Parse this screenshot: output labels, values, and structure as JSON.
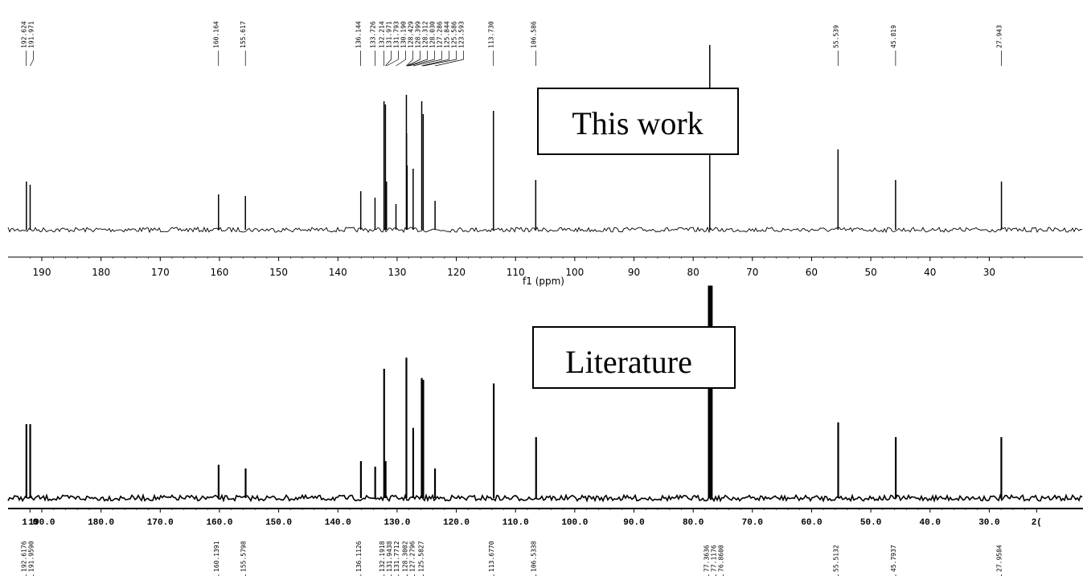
{
  "chart_data": [
    {
      "type": "line",
      "subtype": "13C NMR spectrum",
      "annotation": "This work",
      "xlabel": "f1 (ppm)",
      "xlim": [
        194,
        22
      ],
      "x_reversed": true,
      "x_ticks": [
        "190",
        "180",
        "170",
        "160",
        "150",
        "140",
        "130",
        "120",
        "110",
        "100",
        "90",
        "80",
        "70",
        "60",
        "50",
        "40",
        "30"
      ],
      "x_tick_values": [
        190,
        180,
        170,
        160,
        150,
        140,
        130,
        120,
        110,
        100,
        90,
        80,
        70,
        60,
        50,
        40,
        30
      ],
      "peak_labels": [
        "192.624",
        "191.971",
        "160.164",
        "155.617",
        "136.144",
        "133.726",
        "132.214",
        "131.971",
        "131.793",
        "130.190",
        "128.429",
        "128.399",
        "128.312",
        "128.030",
        "127.286",
        "125.844",
        "125.586",
        "123.593",
        "113.730",
        "106.586",
        "55.539",
        "45.819",
        "27.943"
      ],
      "peaks": [
        {
          "x": 192.6,
          "y": 0.3
        },
        {
          "x": 191.97,
          "y": 0.28
        },
        {
          "x": 160.16,
          "y": 0.22
        },
        {
          "x": 155.62,
          "y": 0.21
        },
        {
          "x": 136.14,
          "y": 0.24
        },
        {
          "x": 133.73,
          "y": 0.2
        },
        {
          "x": 132.21,
          "y": 0.8
        },
        {
          "x": 131.97,
          "y": 0.78
        },
        {
          "x": 131.79,
          "y": 0.3
        },
        {
          "x": 130.19,
          "y": 0.16
        },
        {
          "x": 128.43,
          "y": 0.84
        },
        {
          "x": 128.4,
          "y": 0.6
        },
        {
          "x": 128.31,
          "y": 0.4
        },
        {
          "x": 127.29,
          "y": 0.38
        },
        {
          "x": 125.84,
          "y": 0.8
        },
        {
          "x": 125.59,
          "y": 0.72
        },
        {
          "x": 123.59,
          "y": 0.18
        },
        {
          "x": 113.73,
          "y": 0.74
        },
        {
          "x": 106.59,
          "y": 0.31
        },
        {
          "x": 77.2,
          "y": 1.15
        },
        {
          "x": 55.54,
          "y": 0.5
        },
        {
          "x": 45.82,
          "y": 0.31
        },
        {
          "x": 27.94,
          "y": 0.3
        }
      ],
      "ylim": [
        0,
        1
      ]
    },
    {
      "type": "line",
      "subtype": "13C NMR spectrum",
      "annotation": "Literature",
      "xlim": [
        194,
        22
      ],
      "x_reversed": true,
      "x_ticks": [
        "1.0",
        "190.0",
        "180.0",
        "170.0",
        "160.0",
        "150.0",
        "140.0",
        "130.0",
        "120.0",
        "110.0",
        "100.0",
        "90.0",
        "80.0",
        "70.0",
        "60.0",
        "50.0",
        "40.0",
        "30.0",
        "2("
      ],
      "x_tick_values": [
        192,
        190,
        180,
        170,
        160,
        150,
        140,
        130,
        120,
        110,
        100,
        90,
        80,
        70,
        60,
        50,
        40,
        30,
        22
      ],
      "peak_labels": [
        "192.6176",
        "191.9590",
        "160.1391",
        "155.5798",
        "136.1126",
        "132.1918",
        "131.9438",
        "131.7712",
        "128.3002",
        "127.2796",
        "125.5827",
        "113.6770",
        "106.5338",
        "77.3636",
        "77.1176",
        "76.8600",
        "55.5132",
        "45.7937",
        "27.9584"
      ],
      "peaks": [
        {
          "x": 192.6,
          "y": 0.4
        },
        {
          "x": 191.96,
          "y": 0.4
        },
        {
          "x": 160.14,
          "y": 0.18
        },
        {
          "x": 155.58,
          "y": 0.16
        },
        {
          "x": 136.11,
          "y": 0.2
        },
        {
          "x": 133.7,
          "y": 0.17
        },
        {
          "x": 132.19,
          "y": 0.7
        },
        {
          "x": 131.94,
          "y": 0.2
        },
        {
          "x": 128.43,
          "y": 0.76
        },
        {
          "x": 127.28,
          "y": 0.38
        },
        {
          "x": 125.84,
          "y": 0.65
        },
        {
          "x": 125.58,
          "y": 0.64
        },
        {
          "x": 123.6,
          "y": 0.16
        },
        {
          "x": 113.68,
          "y": 0.62
        },
        {
          "x": 106.53,
          "y": 0.33
        },
        {
          "x": 77.36,
          "y": 1.15
        },
        {
          "x": 77.12,
          "y": 1.15
        },
        {
          "x": 76.86,
          "y": 1.15
        },
        {
          "x": 55.51,
          "y": 0.41
        },
        {
          "x": 45.79,
          "y": 0.33
        },
        {
          "x": 27.96,
          "y": 0.33
        }
      ],
      "ylim": [
        0,
        1
      ]
    }
  ]
}
